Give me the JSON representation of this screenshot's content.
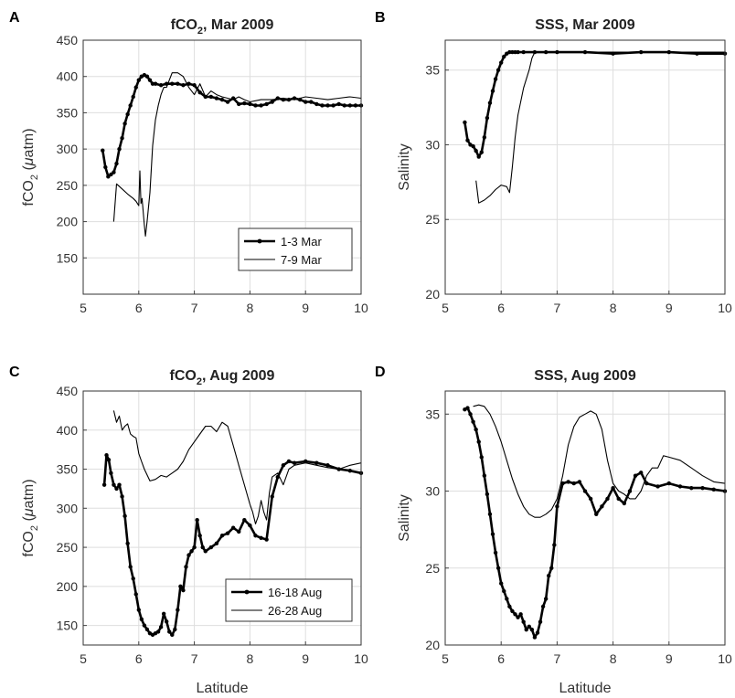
{
  "chart_data": [
    {
      "panel": "A",
      "type": "line",
      "title_main": "fCO",
      "title_sub": "2",
      "title_rest": ", Mar 2009",
      "xlabel": "",
      "ylabel_main": "fCO",
      "ylabel_sub": "2",
      "ylabel_rest": " (",
      "ylabel_unit_greek": "μ",
      "ylabel_unit": "atm)",
      "xlim": [
        5,
        10
      ],
      "ylim": [
        100,
        450
      ],
      "xticks": [
        5,
        6,
        7,
        8,
        9,
        10
      ],
      "yticks": [
        150,
        200,
        250,
        300,
        350,
        400,
        450
      ],
      "grid": true,
      "legend": {
        "position": "bottom-right",
        "entries": [
          "1-3 Mar",
          "7-9 Mar"
        ]
      },
      "series": [
        {
          "name": "1-3 Mar",
          "style": "dotted-thick",
          "x": [
            5.35,
            5.4,
            5.45,
            5.5,
            5.55,
            5.6,
            5.65,
            5.7,
            5.75,
            5.8,
            5.85,
            5.9,
            5.95,
            6.0,
            6.05,
            6.1,
            6.15,
            6.2,
            6.25,
            6.3,
            6.4,
            6.5,
            6.6,
            6.7,
            6.8,
            6.9,
            7.0,
            7.1,
            7.2,
            7.3,
            7.4,
            7.5,
            7.6,
            7.7,
            7.8,
            7.9,
            8.0,
            8.1,
            8.2,
            8.3,
            8.4,
            8.5,
            8.6,
            8.7,
            8.8,
            8.9,
            9.0,
            9.1,
            9.2,
            9.3,
            9.4,
            9.5,
            9.6,
            9.7,
            9.8,
            9.9,
            10.0
          ],
          "y": [
            298,
            275,
            262,
            265,
            268,
            280,
            300,
            315,
            335,
            348,
            360,
            372,
            385,
            395,
            400,
            402,
            400,
            395,
            390,
            390,
            388,
            390,
            390,
            390,
            388,
            390,
            388,
            378,
            372,
            372,
            370,
            368,
            365,
            370,
            362,
            363,
            362,
            360,
            360,
            362,
            365,
            370,
            368,
            368,
            370,
            368,
            365,
            365,
            362,
            360,
            360,
            360,
            362,
            360,
            360,
            360,
            360
          ]
        },
        {
          "name": "7-9 Mar",
          "style": "thin",
          "x": [
            5.55,
            5.6,
            5.7,
            5.8,
            5.9,
            5.95,
            6.0,
            6.02,
            6.04,
            6.06,
            6.1,
            6.12,
            6.15,
            6.2,
            6.25,
            6.3,
            6.35,
            6.4,
            6.45,
            6.5,
            6.55,
            6.6,
            6.7,
            6.8,
            6.9,
            7.0,
            7.1,
            7.2,
            7.3,
            7.4,
            7.5,
            7.6,
            7.7,
            7.8,
            7.9,
            8.0,
            8.2,
            8.4,
            8.6,
            8.8,
            9.0,
            9.2,
            9.4,
            9.6,
            9.8,
            10.0
          ],
          "y": [
            200,
            252,
            245,
            238,
            232,
            228,
            222,
            270,
            225,
            232,
            195,
            180,
            200,
            240,
            305,
            340,
            360,
            375,
            385,
            385,
            395,
            405,
            405,
            400,
            385,
            375,
            390,
            372,
            380,
            375,
            372,
            370,
            368,
            372,
            368,
            365,
            368,
            368,
            370,
            368,
            372,
            370,
            368,
            370,
            372,
            370
          ]
        }
      ]
    },
    {
      "panel": "B",
      "type": "line",
      "title_main": "SSS, Mar 2009",
      "xlabel": "",
      "ylabel": "Salinity",
      "xlim": [
        5,
        10
      ],
      "ylim": [
        20,
        37
      ],
      "xticks": [
        5,
        6,
        7,
        8,
        9,
        10
      ],
      "yticks": [
        20,
        25,
        30,
        35
      ],
      "grid": true,
      "series": [
        {
          "name": "1-3 Mar",
          "style": "dotted-thick",
          "x": [
            5.35,
            5.4,
            5.45,
            5.5,
            5.55,
            5.6,
            5.65,
            5.7,
            5.75,
            5.8,
            5.85,
            5.9,
            5.95,
            6.0,
            6.05,
            6.1,
            6.15,
            6.2,
            6.25,
            6.3,
            6.4,
            6.6,
            6.8,
            7.0,
            7.5,
            8.0,
            8.5,
            9.0,
            9.5,
            10.0
          ],
          "y": [
            31.5,
            30.3,
            30.0,
            29.9,
            29.6,
            29.2,
            29.5,
            30.5,
            31.8,
            32.8,
            33.6,
            34.4,
            35.0,
            35.5,
            35.9,
            36.1,
            36.2,
            36.2,
            36.2,
            36.2,
            36.2,
            36.2,
            36.2,
            36.2,
            36.2,
            36.1,
            36.2,
            36.2,
            36.1,
            36.1
          ]
        },
        {
          "name": "7-9 Mar",
          "style": "thin",
          "x": [
            5.55,
            5.6,
            5.7,
            5.8,
            5.9,
            6.0,
            6.1,
            6.15,
            6.2,
            6.25,
            6.3,
            6.4,
            6.5,
            6.55,
            6.6,
            6.7,
            6.8,
            7.0,
            7.5,
            8.0,
            8.5,
            9.0,
            9.5,
            10.0
          ],
          "y": [
            27.6,
            26.1,
            26.3,
            26.6,
            27.0,
            27.3,
            27.2,
            26.8,
            28.5,
            30.5,
            32.0,
            33.8,
            35.0,
            35.8,
            36.2,
            36.2,
            36.2,
            36.2,
            36.2,
            36.2,
            36.2,
            36.2,
            36.2,
            36.2
          ]
        }
      ]
    },
    {
      "panel": "C",
      "type": "line",
      "title_main": "fCO",
      "title_sub": "2",
      "title_rest": ", Aug 2009",
      "xlabel": "Latitude",
      "ylabel_main": "fCO",
      "ylabel_sub": "2",
      "ylabel_rest": " (",
      "ylabel_unit_greek": "μ",
      "ylabel_unit": "atm)",
      "xlim": [
        5,
        10
      ],
      "ylim": [
        125,
        450
      ],
      "xticks": [
        5,
        6,
        7,
        8,
        9,
        10
      ],
      "yticks": [
        150,
        200,
        250,
        300,
        350,
        400,
        450
      ],
      "grid": true,
      "legend": {
        "position": "bottom-right",
        "entries": [
          "16-18 Aug",
          "26-28 Aug"
        ]
      },
      "series": [
        {
          "name": "16-18 Aug",
          "style": "dotted-thick",
          "x": [
            5.38,
            5.42,
            5.46,
            5.5,
            5.55,
            5.6,
            5.65,
            5.7,
            5.75,
            5.8,
            5.85,
            5.9,
            5.95,
            6.0,
            6.05,
            6.1,
            6.15,
            6.2,
            6.25,
            6.3,
            6.35,
            6.4,
            6.45,
            6.5,
            6.55,
            6.6,
            6.65,
            6.7,
            6.75,
            6.8,
            6.85,
            6.9,
            6.95,
            7.0,
            7.05,
            7.1,
            7.15,
            7.2,
            7.3,
            7.4,
            7.5,
            7.6,
            7.7,
            7.8,
            7.9,
            8.0,
            8.1,
            8.2,
            8.3,
            8.4,
            8.5,
            8.6,
            8.7,
            8.8,
            9.0,
            9.2,
            9.4,
            9.6,
            9.8,
            10.0
          ],
          "y": [
            330,
            368,
            362,
            345,
            330,
            325,
            330,
            315,
            290,
            255,
            225,
            210,
            190,
            170,
            158,
            150,
            145,
            140,
            138,
            140,
            142,
            148,
            165,
            155,
            142,
            138,
            145,
            170,
            200,
            195,
            225,
            240,
            245,
            250,
            285,
            265,
            250,
            245,
            250,
            255,
            265,
            268,
            275,
            270,
            285,
            278,
            265,
            262,
            260,
            315,
            340,
            355,
            360,
            358,
            360,
            358,
            355,
            350,
            348,
            345
          ]
        },
        {
          "name": "26-28 Aug",
          "style": "thin",
          "x": [
            5.55,
            5.6,
            5.65,
            5.7,
            5.75,
            5.8,
            5.85,
            5.9,
            5.95,
            6.0,
            6.05,
            6.1,
            6.2,
            6.3,
            6.4,
            6.5,
            6.6,
            6.7,
            6.8,
            6.9,
            7.0,
            7.1,
            7.2,
            7.3,
            7.4,
            7.5,
            7.6,
            7.7,
            7.8,
            7.9,
            8.0,
            8.05,
            8.1,
            8.15,
            8.2,
            8.25,
            8.3,
            8.35,
            8.4,
            8.5,
            8.6,
            8.7,
            8.8,
            9.0,
            9.2,
            9.4,
            9.6,
            9.8,
            10.0
          ],
          "y": [
            425,
            410,
            418,
            400,
            405,
            408,
            395,
            392,
            390,
            370,
            360,
            350,
            335,
            337,
            342,
            340,
            345,
            350,
            360,
            375,
            385,
            395,
            405,
            405,
            398,
            410,
            405,
            380,
            355,
            330,
            305,
            295,
            280,
            290,
            310,
            295,
            285,
            320,
            340,
            345,
            330,
            350,
            355,
            358,
            355,
            352,
            350,
            355,
            358
          ]
        }
      ]
    },
    {
      "panel": "D",
      "type": "line",
      "title_main": "SSS, Aug 2009",
      "xlabel": "Latitude",
      "ylabel": "Salinity",
      "xlim": [
        5,
        10
      ],
      "ylim": [
        20,
        36.5
      ],
      "xticks": [
        5,
        6,
        7,
        8,
        9,
        10
      ],
      "yticks": [
        20,
        25,
        30,
        35
      ],
      "grid": true,
      "series": [
        {
          "name": "16-18 Aug",
          "style": "dotted-thick",
          "x": [
            5.35,
            5.4,
            5.45,
            5.5,
            5.55,
            5.6,
            5.65,
            5.7,
            5.75,
            5.8,
            5.85,
            5.9,
            5.95,
            6.0,
            6.05,
            6.1,
            6.15,
            6.2,
            6.25,
            6.3,
            6.35,
            6.4,
            6.45,
            6.5,
            6.55,
            6.6,
            6.65,
            6.7,
            6.75,
            6.8,
            6.85,
            6.9,
            6.95,
            7.0,
            7.1,
            7.2,
            7.3,
            7.4,
            7.5,
            7.6,
            7.7,
            7.8,
            7.9,
            8.0,
            8.1,
            8.2,
            8.3,
            8.4,
            8.5,
            8.6,
            8.8,
            9.0,
            9.2,
            9.4,
            9.6,
            9.8,
            10.0
          ],
          "y": [
            35.3,
            35.4,
            35.0,
            34.5,
            34.0,
            33.2,
            32.2,
            31.0,
            29.8,
            28.5,
            27.2,
            26.0,
            25.0,
            24.0,
            23.5,
            23.0,
            22.5,
            22.2,
            22.0,
            21.8,
            22.0,
            21.5,
            21.0,
            21.2,
            21.0,
            20.5,
            20.8,
            21.5,
            22.5,
            23.0,
            24.5,
            25.0,
            26.5,
            29.0,
            30.5,
            30.6,
            30.5,
            30.6,
            30.0,
            29.5,
            28.5,
            29.0,
            29.5,
            30.2,
            29.5,
            29.2,
            30.0,
            31.0,
            31.2,
            30.5,
            30.3,
            30.5,
            30.3,
            30.2,
            30.2,
            30.1,
            30.0
          ]
        },
        {
          "name": "26-28 Aug",
          "style": "thin",
          "x": [
            5.5,
            5.6,
            5.7,
            5.8,
            5.9,
            6.0,
            6.1,
            6.2,
            6.3,
            6.4,
            6.5,
            6.6,
            6.7,
            6.8,
            6.9,
            7.0,
            7.1,
            7.2,
            7.3,
            7.4,
            7.5,
            7.6,
            7.7,
            7.8,
            7.9,
            8.0,
            8.1,
            8.2,
            8.3,
            8.4,
            8.5,
            8.6,
            8.7,
            8.8,
            8.9,
            9.0,
            9.2,
            9.4,
            9.6,
            9.8,
            10.0
          ],
          "y": [
            35.5,
            35.6,
            35.5,
            35.0,
            34.2,
            33.2,
            32.0,
            30.8,
            29.8,
            29.0,
            28.5,
            28.3,
            28.3,
            28.5,
            28.8,
            29.5,
            31.0,
            33.0,
            34.2,
            34.8,
            35.0,
            35.2,
            35.0,
            34.0,
            32.0,
            30.5,
            30.0,
            29.8,
            29.5,
            29.5,
            30.0,
            31.0,
            31.5,
            31.5,
            32.3,
            32.2,
            32.0,
            31.5,
            31.0,
            30.6,
            30.5
          ]
        }
      ]
    }
  ]
}
